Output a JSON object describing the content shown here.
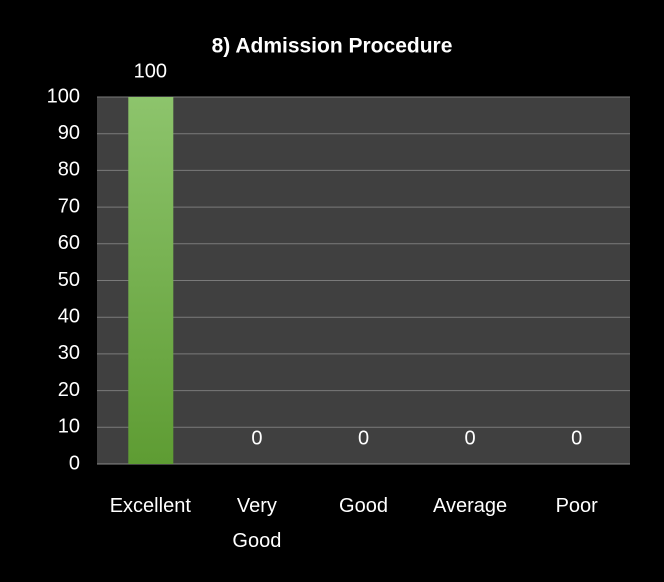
{
  "chart_data": {
    "type": "bar",
    "title": "8) Admission Procedure",
    "categories": [
      "Excellent",
      "Very Good",
      "Good",
      "Average",
      "Poor"
    ],
    "values": [
      100,
      0,
      0,
      0,
      0
    ],
    "color": "#6aab3f",
    "ylim": [
      0,
      100
    ],
    "yticks": [
      0,
      10,
      20,
      30,
      40,
      50,
      60,
      70,
      80,
      90,
      100
    ],
    "grid": true
  }
}
